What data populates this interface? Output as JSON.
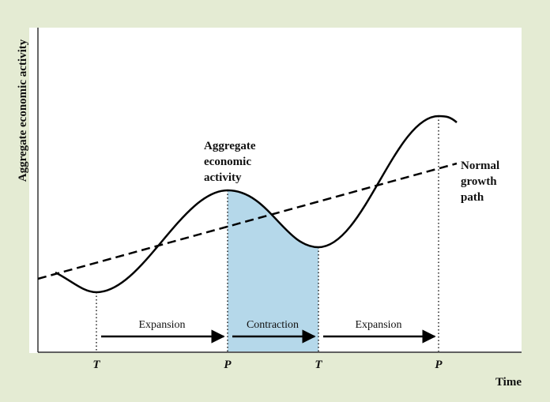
{
  "y_axis_label": "Aggregate economic activity",
  "x_axis_label": "Time",
  "curve_label": [
    "Aggregate",
    "economic",
    "activity"
  ],
  "trend_label": [
    "Normal",
    "growth",
    "path"
  ],
  "phases": [
    "Expansion",
    "Contraction",
    "Expansion"
  ],
  "points": [
    "T",
    "P",
    "T",
    "P"
  ]
}
